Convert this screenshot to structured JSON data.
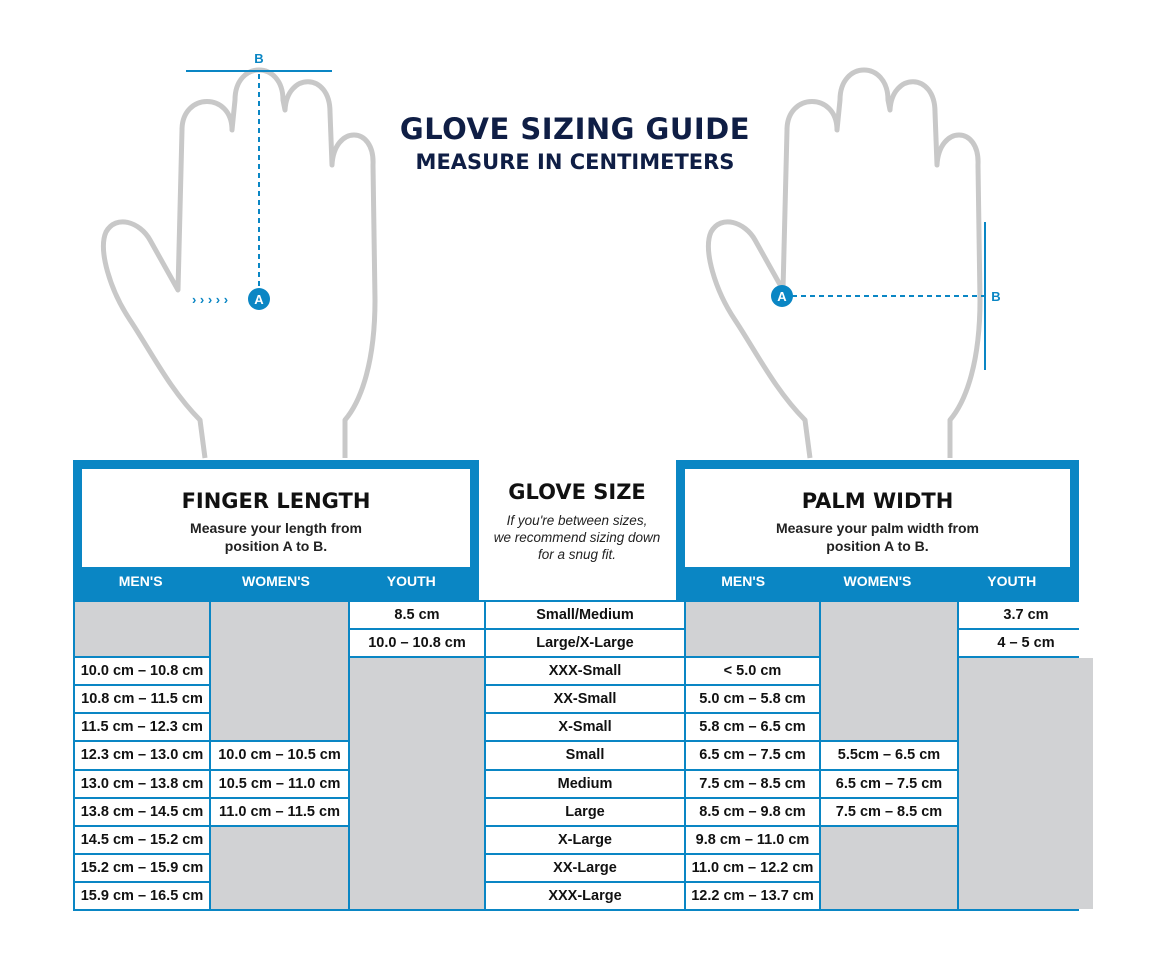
{
  "title": "GLOVE SIZING GUIDE",
  "subtitle": "MEASURE IN CENTIMETERS",
  "markers": {
    "a": "A",
    "b": "B"
  },
  "colors": {
    "accent": "#0a86c4",
    "title": "#0f1e45",
    "hand": "#c8c8c8",
    "empty_cell": "#d1d2d4"
  },
  "finger": {
    "title": "FINGER LENGTH",
    "desc1": "Measure your length from",
    "desc2": "position A to B.",
    "cols": [
      "MEN'S",
      "WOMEN'S",
      "YOUTH"
    ],
    "mens": [
      "10.0 cm – 10.8 cm",
      "10.8 cm – 11.5 cm",
      "11.5 cm – 12.3 cm",
      "12.3 cm – 13.0 cm",
      "13.0 cm – 13.8 cm",
      "13.8 cm – 14.5 cm",
      "14.5 cm – 15.2 cm",
      "15.2 cm – 15.9 cm",
      "15.9 cm – 16.5 cm"
    ],
    "womens": [
      "10.0 cm – 10.5 cm",
      "10.5 cm – 11.0 cm",
      "11.0 cm – 11.5 cm"
    ],
    "youth": [
      "8.5 cm",
      "10.0 – 10.8 cm"
    ]
  },
  "glove": {
    "title": "GLOVE SIZE",
    "note1": "If you're between sizes,",
    "note2": "we recommend sizing down",
    "note3": "for a snug fit.",
    "sizes": [
      "Small/Medium",
      "Large/X-Large",
      "XXX-Small",
      "XX-Small",
      "X-Small",
      "Small",
      "Medium",
      "Large",
      "X-Large",
      "XX-Large",
      "XXX-Large"
    ]
  },
  "palm": {
    "title": "PALM WIDTH",
    "desc1": "Measure your palm width from",
    "desc2": "position A to B.",
    "cols": [
      "MEN'S",
      "WOMEN'S",
      "YOUTH"
    ],
    "mens": [
      "< 5.0 cm",
      "5.0 cm – 5.8 cm",
      "5.8 cm – 6.5 cm",
      "6.5 cm – 7.5 cm",
      "7.5 cm – 8.5 cm",
      "8.5 cm – 9.8 cm",
      "9.8 cm – 11.0 cm",
      "11.0 cm – 12.2 cm",
      "12.2 cm – 13.7 cm"
    ],
    "womens": [
      "5.5cm – 6.5 cm",
      "6.5 cm – 7.5 cm",
      "7.5 cm – 8.5 cm"
    ],
    "youth": [
      "3.7 cm",
      "4 – 5 cm"
    ]
  }
}
